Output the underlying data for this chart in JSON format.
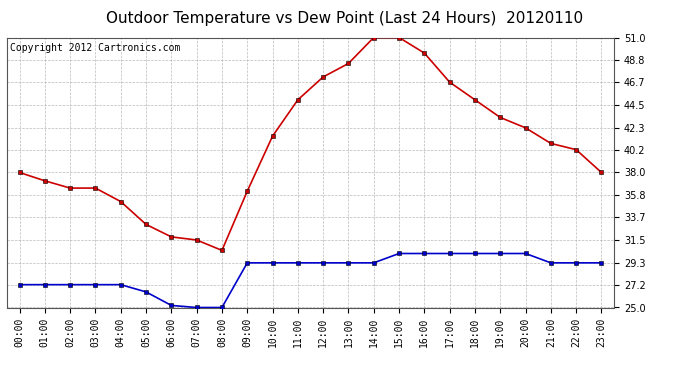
{
  "title": "Outdoor Temperature vs Dew Point (Last 24 Hours)  20120110",
  "copyright": "Copyright 2012 Cartronics.com",
  "x_labels": [
    "00:00",
    "01:00",
    "02:00",
    "03:00",
    "04:00",
    "05:00",
    "06:00",
    "07:00",
    "08:00",
    "09:00",
    "10:00",
    "11:00",
    "12:00",
    "13:00",
    "14:00",
    "15:00",
    "16:00",
    "17:00",
    "18:00",
    "19:00",
    "20:00",
    "21:00",
    "22:00",
    "23:00"
  ],
  "temp_data": [
    38.0,
    37.2,
    36.5,
    36.5,
    35.2,
    33.0,
    31.8,
    31.5,
    30.5,
    36.2,
    41.5,
    45.0,
    47.2,
    48.5,
    51.0,
    51.0,
    49.5,
    46.7,
    45.0,
    43.3,
    42.3,
    40.8,
    40.2,
    38.0
  ],
  "dew_data": [
    27.2,
    27.2,
    27.2,
    27.2,
    27.2,
    26.5,
    25.2,
    25.0,
    25.0,
    29.3,
    29.3,
    29.3,
    29.3,
    29.3,
    29.3,
    30.2,
    30.2,
    30.2,
    30.2,
    30.2,
    30.2,
    29.3,
    29.3,
    29.3
  ],
  "temp_color": "#cc0000",
  "dew_color": "#0000cc",
  "ylim": [
    25.0,
    51.0
  ],
  "yticks": [
    25.0,
    27.2,
    29.3,
    31.5,
    33.7,
    35.8,
    38.0,
    40.2,
    42.3,
    44.5,
    46.7,
    48.8,
    51.0
  ],
  "background_color": "#ffffff",
  "grid_color": "#aaaaaa",
  "title_fontsize": 11,
  "copyright_fontsize": 7,
  "marker": "s",
  "marker_size": 3,
  "line_width": 1.2,
  "tick_fontsize": 7
}
